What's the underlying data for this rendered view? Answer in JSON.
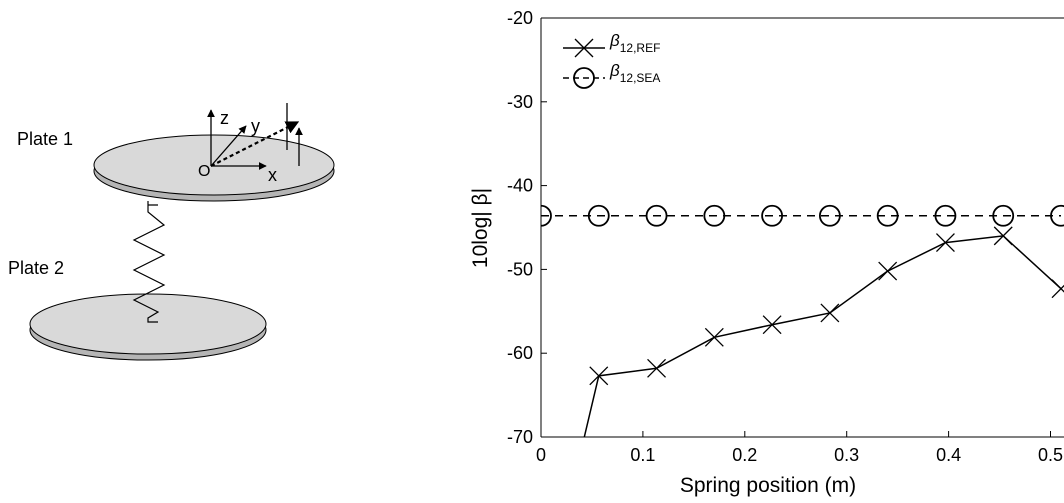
{
  "diagram": {
    "plate1_label": "Plate 1",
    "plate2_label": "Plate 2",
    "axis_z": "z",
    "axis_y": "y",
    "axis_x": "x",
    "origin": "O",
    "plate_color": "#d9d9d9"
  },
  "chart_data": {
    "type": "line",
    "xlabel": "Spring position (m)",
    "ylabel": "10log| β|",
    "xlim": [
      0,
      0.51
    ],
    "ylim": [
      -70,
      -20
    ],
    "xticks": [
      0,
      0.1,
      0.2,
      0.3,
      0.4,
      0.5
    ],
    "xtick_labels": [
      "0",
      "0.1",
      "0.2",
      "0.3",
      "0.4",
      "0.5"
    ],
    "yticks": [
      -70,
      -60,
      -50,
      -40,
      -30,
      -20
    ],
    "ytick_labels": [
      "-70",
      "-60",
      "-50",
      "-40",
      "-30",
      "-20"
    ],
    "grid": false,
    "legend_position": "top-left",
    "series": [
      {
        "name": "β12,REF",
        "name_base": "β",
        "name_sub": "12,REF",
        "marker": "x",
        "line": "solid",
        "color": "#000000",
        "x": [
          0.0425,
          0.0567,
          0.1134,
          0.1701,
          0.2268,
          0.2835,
          0.3402,
          0.3969,
          0.4536,
          0.5103
        ],
        "y": [
          -70,
          -62.7,
          -61.8,
          -58.1,
          -56.6,
          -55.2,
          -50.2,
          -46.8,
          -46.0,
          -52.3
        ],
        "marker_from": 1
      },
      {
        "name": "β12,SEA",
        "name_base": "β",
        "name_sub": "12,SEA",
        "marker": "o",
        "line": "dashed",
        "color": "#000000",
        "x": [
          0.0,
          0.0567,
          0.1134,
          0.1701,
          0.2268,
          0.2835,
          0.3402,
          0.3969,
          0.4536,
          0.5103
        ],
        "y": [
          -43.6,
          -43.6,
          -43.6,
          -43.6,
          -43.6,
          -43.6,
          -43.6,
          -43.6,
          -43.6,
          -43.6
        ],
        "marker_from": 0
      }
    ]
  }
}
